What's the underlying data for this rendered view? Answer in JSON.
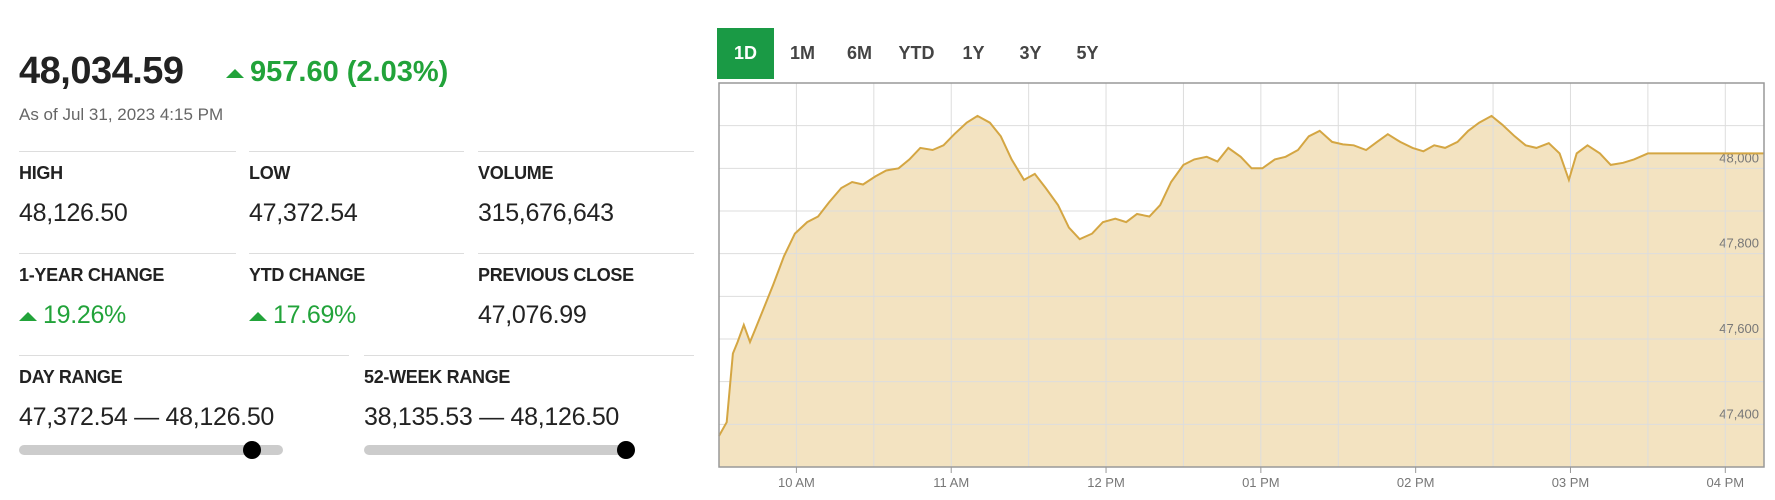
{
  "header": {
    "value": "48,034.59",
    "change": "957.60 (2.03%)",
    "change_trend": "up",
    "as_of": "As of Jul 31, 2023 4:15 PM"
  },
  "stats": [
    {
      "label": "HIGH",
      "value": "48,126.50"
    },
    {
      "label": "LOW",
      "value": "47,372.54"
    },
    {
      "label": "VOLUME",
      "value": "315,676,643"
    },
    {
      "label": "1-YEAR CHANGE",
      "value": "19.26%",
      "trend": "up"
    },
    {
      "label": "YTD CHANGE",
      "value": "17.69%",
      "trend": "up"
    },
    {
      "label": "PREVIOUS CLOSE",
      "value": "47,076.99"
    }
  ],
  "ranges": [
    {
      "label": "DAY RANGE",
      "value": "47,372.54 — 48,126.50"
    },
    {
      "label": "52-WEEK RANGE",
      "value": "38,135.53 — 48,126.50"
    }
  ],
  "tabs": [
    "1D",
    "1M",
    "6M",
    "YTD",
    "1Y",
    "3Y",
    "5Y"
  ],
  "active_tab": "1D",
  "chart_data": {
    "type": "area",
    "x": [
      9.5,
      9.55,
      9.59,
      9.62,
      9.66,
      9.7,
      9.73,
      9.79,
      9.85,
      9.92,
      9.99,
      10.07,
      10.14,
      10.21,
      10.29,
      10.36,
      10.43,
      10.51,
      10.58,
      10.66,
      10.73,
      10.8,
      10.88,
      10.95,
      11.02,
      11.1,
      11.17,
      11.25,
      11.32,
      11.39,
      11.47,
      11.54,
      11.61,
      11.69,
      11.76,
      11.83,
      11.91,
      11.98,
      12.06,
      12.13,
      12.2,
      12.28,
      12.35,
      12.42,
      12.5,
      12.57,
      12.65,
      12.72,
      12.79,
      12.87,
      12.94,
      13.01,
      13.09,
      13.16,
      13.24,
      13.31,
      13.38,
      13.46,
      13.53,
      13.6,
      13.68,
      13.75,
      13.82,
      13.9,
      13.98,
      14.05,
      14.12,
      14.19,
      14.27,
      14.34,
      14.41,
      14.49,
      14.56,
      14.64,
      14.71,
      14.78,
      14.86,
      14.93,
      14.99,
      15.04,
      15.11,
      15.19,
      15.26,
      15.34,
      15.41,
      15.5,
      16.25
    ],
    "values": [
      47373,
      47405,
      47566,
      47593,
      47633,
      47593,
      47619,
      47673,
      47727,
      47794,
      47847,
      47874,
      47887,
      47920,
      47954,
      47968,
      47962,
      47981,
      47995,
      48000,
      48021,
      48048,
      48043,
      48054,
      48080,
      48107,
      48123,
      48107,
      48075,
      48021,
      47973,
      47987,
      47954,
      47914,
      47861,
      47834,
      47847,
      47874,
      47882,
      47874,
      47893,
      47887,
      47914,
      47968,
      48008,
      48021,
      48027,
      48016,
      48048,
      48027,
      48000,
      48000,
      48021,
      48027,
      48043,
      48075,
      48088,
      48062,
      48056,
      48054,
      48043,
      48062,
      48080,
      48062,
      48048,
      48040,
      48054,
      48048,
      48062,
      48088,
      48107,
      48123,
      48102,
      48075,
      48054,
      48048,
      48059,
      48035,
      47973,
      48035,
      48054,
      48035,
      48008,
      48013,
      48021,
      48035,
      48035
    ],
    "color": "#d4a643",
    "fill": "#f3e3c1",
    "xlim": [
      9.5,
      16.25
    ],
    "xticks": [
      {
        "value": 10,
        "label": "10 AM"
      },
      {
        "value": 11,
        "label": "11 AM"
      },
      {
        "value": 12,
        "label": "12 PM"
      },
      {
        "value": 13,
        "label": "01 PM"
      },
      {
        "value": 14,
        "label": "02 PM"
      },
      {
        "value": 15,
        "label": "03 PM"
      },
      {
        "value": 16,
        "label": "04 PM"
      }
    ],
    "ylim": [
      47300,
      48200
    ],
    "yticks": [
      {
        "value": 47400,
        "label": "47,400"
      },
      {
        "value": 47600,
        "label": "47,600"
      },
      {
        "value": 47800,
        "label": "47,800"
      },
      {
        "value": 48000,
        "label": "48,000"
      }
    ],
    "grid": true
  }
}
